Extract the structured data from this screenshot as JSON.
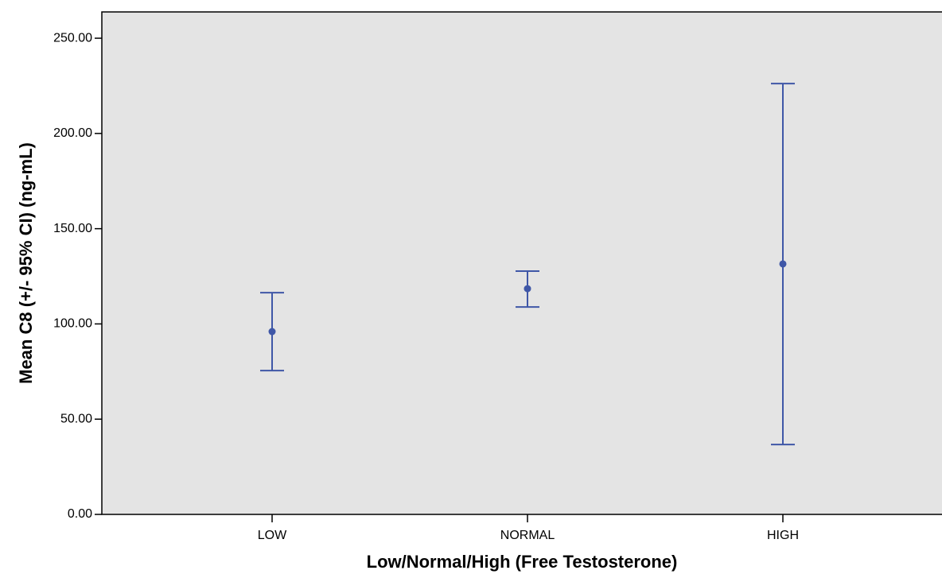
{
  "chart_data": {
    "type": "errorbar",
    "xlabel": "Low/Normal/High (Free Testosterone)",
    "ylabel": "Mean C8 (+/- 95% CI) (ng-mL)",
    "categories": [
      "LOW",
      "NORMAL",
      "HIGH"
    ],
    "series": [
      {
        "color": "#3f57a7",
        "values": [
          96.0,
          118.5,
          131.5
        ],
        "ci_lower": [
          75.5,
          108.9,
          36.7
        ],
        "ci_upper": [
          116.4,
          127.7,
          226.2
        ]
      }
    ],
    "ylim": [
      0,
      263.8
    ],
    "yticks": [
      {
        "value": 0,
        "label": "0.00"
      },
      {
        "value": 50,
        "label": "50.00"
      },
      {
        "value": 100,
        "label": "100.00"
      },
      {
        "value": 150,
        "label": "150.00"
      },
      {
        "value": 200,
        "label": "200.00"
      },
      {
        "value": 250,
        "label": "250.00"
      }
    ],
    "plot_background": "#e4e4e4"
  }
}
